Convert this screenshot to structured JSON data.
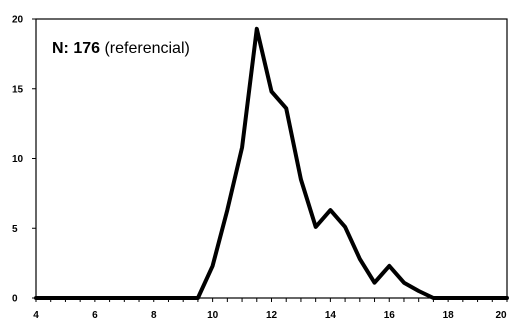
{
  "chart_data": {
    "type": "line",
    "x": [
      4,
      4.5,
      5,
      5.5,
      6,
      6.5,
      7,
      7.5,
      8,
      8.5,
      9,
      9.5,
      10,
      10.5,
      11,
      11.5,
      12,
      12.5,
      13,
      13.5,
      14,
      14.5,
      15,
      15.5,
      16,
      16.5,
      17,
      17.5,
      18,
      18.5,
      19,
      19.5,
      20
    ],
    "series": [
      {
        "values": [
          0,
          0,
          0,
          0,
          0,
          0,
          0,
          0,
          0,
          0,
          0,
          0,
          2.3,
          6.3,
          10.8,
          19.3,
          14.8,
          13.6,
          8.5,
          5.1,
          6.3,
          5.1,
          2.8,
          1.1,
          2.3,
          1.1,
          0.5,
          0,
          0,
          0,
          0,
          0,
          0
        ]
      }
    ],
    "xlim": [
      4,
      20
    ],
    "ylim": [
      0,
      20
    ],
    "x_ticks": [
      "4",
      "6",
      "8",
      "10",
      "12",
      "14",
      "16",
      "18",
      "20"
    ],
    "y_ticks": [
      "0",
      "5",
      "10",
      "15",
      "20"
    ],
    "grid": false,
    "line_color": "#000000",
    "annotation": {
      "bold": "N: 176",
      "normal": " (referencial)"
    }
  }
}
